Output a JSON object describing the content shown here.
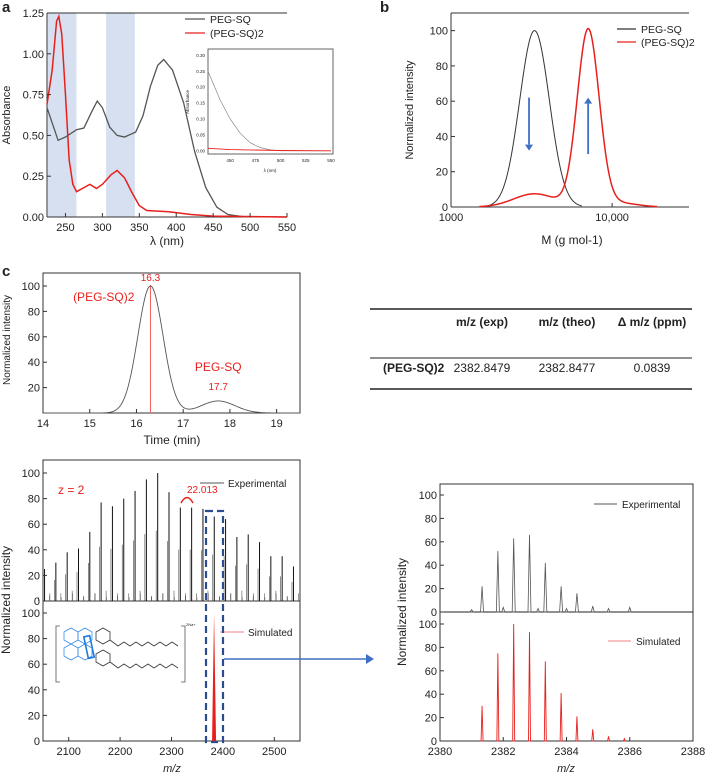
{
  "panel_labels": {
    "a": "a",
    "b": "b",
    "c": "c"
  },
  "table": {
    "headers": [
      "",
      "m/z (exp)",
      "m/z (theo)",
      "Δ m/z (ppm)"
    ],
    "rows": [
      [
        "(PEG-SQ)2",
        "2382.8479",
        "2382.8477",
        "0.0839"
      ]
    ]
  },
  "structure": {
    "charge": "2Na+"
  },
  "colors": {
    "peg_sq": "#555555",
    "dimer": "#e8201d",
    "band": "#d6e0f1",
    "arrow": "#3f6fc4",
    "box": "#2a4d8f"
  },
  "chart_data": [
    {
      "id": "a",
      "type": "line",
      "xlabel": "λ (nm)",
      "ylabel": "Absorbance",
      "xlim": [
        225,
        550
      ],
      "ylim": [
        0,
        1.25
      ],
      "xticks": [
        250,
        300,
        350,
        400,
        450,
        500,
        550
      ],
      "yticks": [
        "0.00",
        "0.25",
        "0.50",
        "0.75",
        "1.00",
        "1.25"
      ],
      "shaded_ranges": [
        [
          226,
          265
        ],
        [
          305,
          344
        ]
      ],
      "legend": [
        "PEG-SQ",
        "(PEG-SQ)2"
      ],
      "legend_position": "top-right",
      "series": [
        {
          "name": "PEG-SQ",
          "x": [
            225,
            240,
            250,
            265,
            275,
            285,
            293,
            300,
            310,
            320,
            330,
            345,
            355,
            365,
            375,
            383,
            395,
            410,
            425,
            440,
            455,
            470,
            490,
            550
          ],
          "y": [
            0.67,
            0.47,
            0.49,
            0.535,
            0.545,
            0.64,
            0.71,
            0.67,
            0.55,
            0.5,
            0.49,
            0.52,
            0.62,
            0.8,
            0.93,
            0.965,
            0.9,
            0.7,
            0.4,
            0.18,
            0.06,
            0.015,
            0.002,
            0
          ]
        },
        {
          "name": "(PEG-SQ)2",
          "x": [
            225,
            232,
            238,
            241,
            245,
            250,
            255,
            260,
            265,
            275,
            283,
            292,
            300,
            312,
            320,
            330,
            340,
            350,
            360,
            390,
            420,
            450,
            550
          ],
          "y": [
            0.69,
            0.9,
            1.2,
            1.23,
            1.12,
            0.75,
            0.35,
            0.2,
            0.155,
            0.18,
            0.2,
            0.175,
            0.2,
            0.26,
            0.285,
            0.24,
            0.15,
            0.07,
            0.04,
            0.032,
            0.015,
            0.005,
            0
          ]
        }
      ],
      "inset": {
        "xlabel": "λ (nm)",
        "ylabel": "Absorbance",
        "xlim": [
          428,
          552
        ],
        "ylim": [
          -0.01,
          0.32
        ],
        "xticks": [
          450,
          475,
          500,
          525,
          550
        ],
        "yticks": [
          "0.00",
          "0.05",
          "0.10",
          "0.15",
          "0.20",
          "0.25",
          "0.30"
        ],
        "series": [
          {
            "name": "PEG-SQ",
            "x": [
              428,
              440,
              450,
              460,
              470,
              480,
              490,
              500,
              550
            ],
            "y": [
              0.25,
              0.16,
              0.1,
              0.055,
              0.025,
              0.01,
              0.003,
              0,
              0
            ]
          },
          {
            "name": "(PEG-SQ)2",
            "x": [
              428,
              450,
              500,
              550
            ],
            "y": [
              0.008,
              0.004,
              0.001,
              0
            ]
          }
        ]
      }
    },
    {
      "id": "b",
      "type": "line",
      "xscale": "log",
      "xlabel": "M (g mol-1)",
      "ylabel": "Normalized intensity",
      "xlim": [
        1000,
        30000
      ],
      "ylim": [
        0,
        110
      ],
      "xticks": [
        "1000",
        "10,000"
      ],
      "yticks": [
        "0",
        "20",
        "40",
        "60",
        "80",
        "100"
      ],
      "legend": [
        "PEG-SQ",
        "(PEG-SQ)2"
      ],
      "legend_position": "top-right",
      "series": [
        {
          "name": "PEG-SQ",
          "gaussian_log_components": [
            {
              "center": 3300,
              "height": 100,
              "sigma": 0.092
            }
          ],
          "range": [
            1550,
            6500
          ]
        },
        {
          "name": "(PEG-SQ)2",
          "gaussian_log_components": [
            {
              "center": 7100,
              "height": 100,
              "sigma": 0.068
            },
            {
              "center": 3300,
              "height": 7.5,
              "sigma": 0.13
            },
            {
              "center": 10500,
              "height": 2.5,
              "sigma": 0.12
            }
          ],
          "range": [
            1500,
            19000
          ]
        }
      ],
      "annotations": [
        {
          "type": "arrow-down",
          "x": 3050,
          "from": 62,
          "to": 32
        },
        {
          "type": "arrow-up",
          "x": 7100,
          "from": 30,
          "to": 62
        }
      ]
    },
    {
      "id": "c-gpc",
      "type": "line",
      "xlabel": "Time (min)",
      "ylabel": "Normalized intensity",
      "xlim": [
        14,
        19.5
      ],
      "ylim": [
        0,
        110
      ],
      "xticks": [
        "14",
        "15",
        "16",
        "17",
        "18",
        "19"
      ],
      "yticks": [
        "20",
        "40",
        "60",
        "80",
        "100"
      ],
      "series": [
        {
          "name": "trace",
          "gaussian_components": [
            {
              "center": 16.3,
              "height": 100,
              "sigma": 0.27
            },
            {
              "center": 17.75,
              "height": 9.5,
              "sigma": 0.36
            }
          ],
          "range": [
            14,
            19.5
          ]
        }
      ],
      "marker_line": 16.3,
      "annotations": [
        {
          "text": "(PEG-SQ)2",
          "x": 15.3,
          "y": 88
        },
        {
          "text": "16.3",
          "x": 16.3,
          "y": 104
        },
        {
          "text": "PEG-SQ",
          "x": 17.75,
          "y": 33
        },
        {
          "text": "17.7",
          "x": 17.75,
          "y": 18
        }
      ]
    },
    {
      "id": "c-ms-full",
      "type": "bar",
      "xlabel": "m/z",
      "ylabel": "Normalized intensity",
      "xlim": [
        2050,
        2550
      ],
      "xticks": [
        "2100",
        "2200",
        "2300",
        "2400",
        "2500"
      ],
      "yticks": [
        "0",
        "20",
        "40",
        "60",
        "80",
        "100"
      ],
      "charge_label": "z = 2",
      "spacing_label": "22.013",
      "experimental": {
        "name": "Experimental",
        "start": 2053,
        "step": 22.013,
        "heights": [
          25,
          30,
          38,
          41,
          54,
          77,
          74,
          80,
          86,
          95,
          100,
          85,
          73,
          73,
          72,
          66,
          64,
          50,
          52,
          46,
          35,
          35,
          27
        ]
      },
      "simulated": {
        "name": "Simulated",
        "x": [
          2382.8
        ],
        "heights": [
          100
        ]
      }
    },
    {
      "id": "c-ms-zoom",
      "type": "bar",
      "xlabel": "m/z",
      "ylabel": "Normalized intensity",
      "xlim": [
        2380,
        2388
      ],
      "xticks": [
        "2380",
        "2382",
        "2384",
        "2386",
        "2388"
      ],
      "yticks": [
        "0",
        "20",
        "40",
        "60",
        "80",
        "100"
      ],
      "experimental": {
        "name": "Experimental",
        "x": [
          2381.0,
          2381.33,
          2381.83,
          2382.0,
          2382.33,
          2382.83,
          2383.1,
          2383.33,
          2383.83,
          2384.0,
          2384.33,
          2384.83,
          2385.33,
          2386.0
        ],
        "heights": [
          2,
          22,
          52,
          4,
          63,
          66,
          3,
          42,
          22,
          3,
          16,
          5,
          3,
          4
        ]
      },
      "simulated": {
        "name": "Simulated",
        "x": [
          2381.33,
          2381.83,
          2382.33,
          2382.83,
          2383.33,
          2383.83,
          2384.33,
          2384.83,
          2385.33,
          2385.83
        ],
        "heights": [
          30,
          75,
          100,
          93,
          68,
          41,
          21,
          10,
          4,
          2
        ]
      }
    }
  ]
}
